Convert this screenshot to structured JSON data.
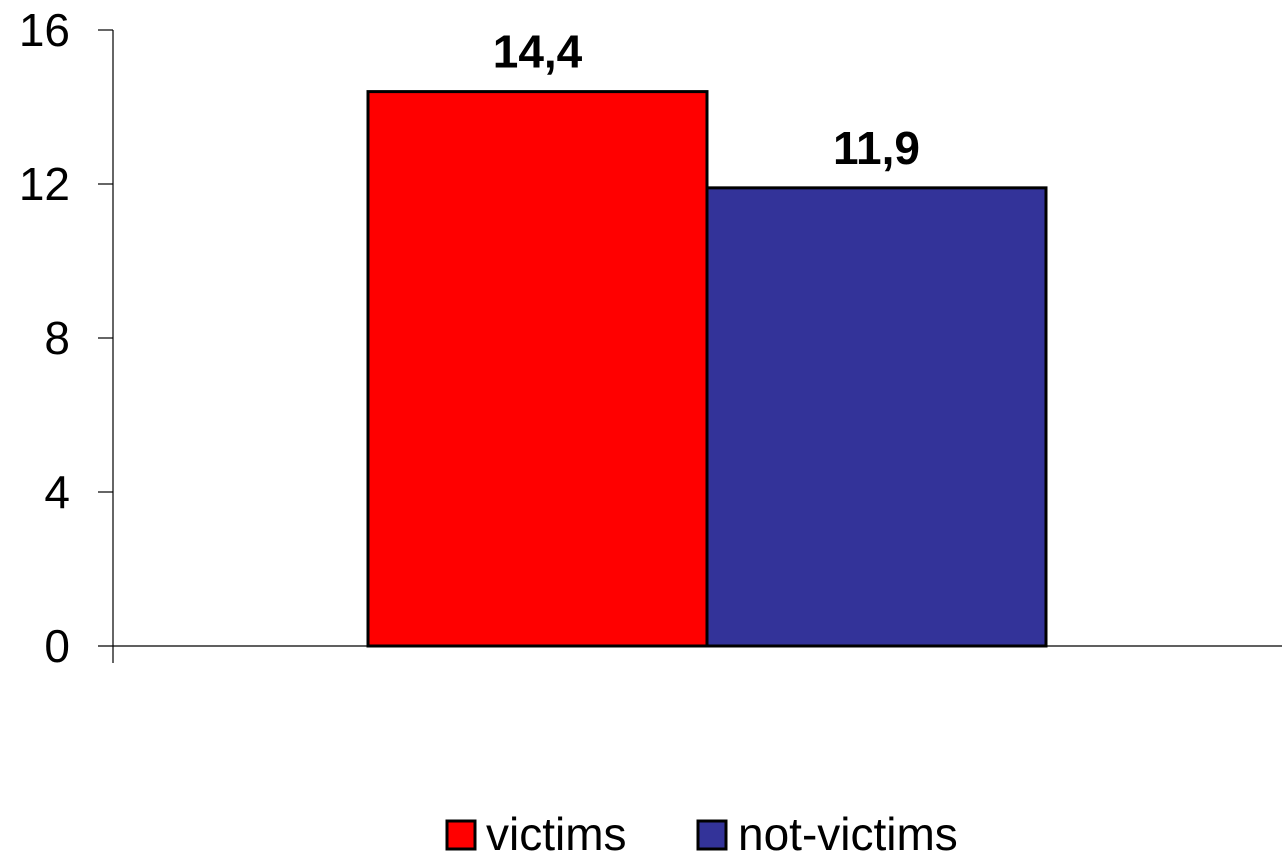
{
  "chart_data": {
    "type": "bar",
    "categories": [
      ""
    ],
    "series": [
      {
        "name": "victims",
        "values": [
          14.4
        ],
        "label": "14,4",
        "color": "#ff0000"
      },
      {
        "name": "not-victims",
        "values": [
          11.9
        ],
        "label": "11,9",
        "color": "#333399"
      }
    ],
    "title": "",
    "xlabel": "",
    "ylabel": "",
    "ylim": [
      0,
      16
    ],
    "yticks": [
      0,
      4,
      8,
      12,
      16
    ],
    "ytick_labels": [
      "0",
      "4",
      "8",
      "12",
      "16"
    ],
    "grid": false,
    "legend": "bottom-center"
  }
}
